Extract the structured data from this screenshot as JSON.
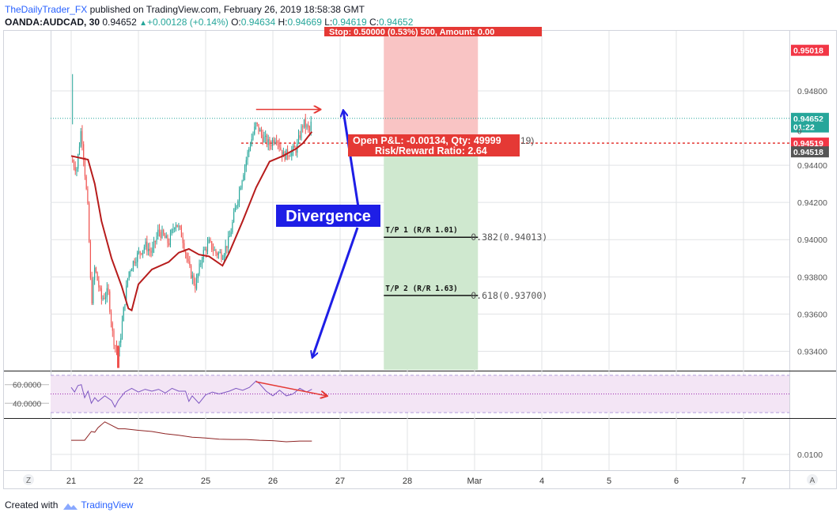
{
  "header": {
    "line1_author": "TheDailyTrader_FX",
    "line1_rest": " published on TradingView.com, February 26, 2019 18:58:38 GMT",
    "symbol": "OANDA:AUDCAD, 30",
    "last": "0.94652",
    "change": "+0.00128 (+0.14%)",
    "o_label": "O:",
    "o_val": "0.94634",
    "h_label": "H:",
    "h_val": "0.94669",
    "l_label": "L:",
    "l_val": "0.94619",
    "c_label": "C:",
    "c_val": "0.94652"
  },
  "footer": {
    "created": "Created with",
    "brand": "TradingView"
  },
  "chart_data": {
    "type": "candlestick",
    "symbol": "OANDA:AUDCAD",
    "interval": "30",
    "price_axis": {
      "range": [
        0.933,
        0.9511
      ],
      "ticks": [
        "0.94800",
        "0.94400",
        "0.94200",
        "0.94000",
        "0.93800",
        "0.93600",
        "0.93400"
      ],
      "ticks_y": [
        0.948,
        0.944,
        0.942,
        0.94,
        0.938,
        0.936,
        0.934
      ],
      "labels": [
        {
          "text": "0.95018",
          "value": 0.95018,
          "color": "#f23645"
        },
        {
          "text": "0.94652",
          "value": 0.94652,
          "color": "#26a69a"
        },
        {
          "text": "01:22",
          "value": 0.94606,
          "color": "#26a69a"
        },
        {
          "text": "0.94519",
          "value": 0.94519,
          "color": "#f23645"
        },
        {
          "text": "0.94518",
          "value": 0.94472,
          "color": "#555555"
        }
      ],
      "small_text": "0"
    },
    "time_axis": {
      "labels": [
        "21",
        "22",
        "25",
        "26",
        "27",
        "28",
        "Mar",
        "4",
        "5",
        "6",
        "7"
      ],
      "index": [
        0,
        1,
        2,
        3,
        4,
        5,
        6,
        7,
        8,
        9,
        10
      ],
      "z_label": "Z",
      "a_label": "A"
    },
    "last_price": 0.94652,
    "close_path": [
      [
        0.0,
        0.9443
      ],
      [
        0.08,
        0.9438
      ],
      [
        0.15,
        0.946
      ],
      [
        0.2,
        0.9438
      ],
      [
        0.25,
        0.9415
      ],
      [
        0.3,
        0.9365
      ],
      [
        0.35,
        0.9385
      ],
      [
        0.45,
        0.9368
      ],
      [
        0.55,
        0.9372
      ],
      [
        0.62,
        0.9348
      ],
      [
        0.7,
        0.9337
      ],
      [
        0.78,
        0.9362
      ],
      [
        0.85,
        0.9382
      ],
      [
        0.95,
        0.939
      ],
      [
        1.1,
        0.9397
      ],
      [
        1.2,
        0.9393
      ],
      [
        1.3,
        0.9405
      ],
      [
        1.45,
        0.9398
      ],
      [
        1.55,
        0.941
      ],
      [
        1.65,
        0.9402
      ],
      [
        1.75,
        0.9385
      ],
      [
        1.85,
        0.9375
      ],
      [
        1.95,
        0.9392
      ],
      [
        2.05,
        0.9398
      ],
      [
        2.15,
        0.9393
      ],
      [
        2.25,
        0.9392
      ],
      [
        2.35,
        0.94
      ],
      [
        2.45,
        0.9418
      ],
      [
        2.55,
        0.9435
      ],
      [
        2.65,
        0.945
      ],
      [
        2.75,
        0.9462
      ],
      [
        2.85,
        0.9455
      ],
      [
        2.95,
        0.9451
      ],
      [
        3.05,
        0.9456
      ],
      [
        3.15,
        0.9445
      ],
      [
        3.25,
        0.9447
      ],
      [
        3.35,
        0.9449
      ],
      [
        3.45,
        0.9463
      ],
      [
        3.55,
        0.9458
      ],
      [
        3.58,
        0.94652
      ]
    ],
    "ma_path": [
      [
        0.0,
        0.9445
      ],
      [
        0.25,
        0.9443
      ],
      [
        0.35,
        0.943
      ],
      [
        0.45,
        0.941
      ],
      [
        0.6,
        0.939
      ],
      [
        0.75,
        0.9375
      ],
      [
        0.85,
        0.9363
      ],
      [
        0.9,
        0.9362
      ],
      [
        1.0,
        0.9376
      ],
      [
        1.2,
        0.9384
      ],
      [
        1.45,
        0.9388
      ],
      [
        1.6,
        0.9393
      ],
      [
        1.75,
        0.9395
      ],
      [
        1.9,
        0.9392
      ],
      [
        2.05,
        0.9391
      ],
      [
        2.25,
        0.9386
      ],
      [
        2.35,
        0.9393
      ],
      [
        2.55,
        0.941
      ],
      [
        2.75,
        0.9428
      ],
      [
        2.95,
        0.9442
      ],
      [
        3.15,
        0.9445
      ],
      [
        3.35,
        0.9449
      ],
      [
        3.45,
        0.9452
      ],
      [
        3.58,
        0.9458
      ]
    ],
    "position": {
      "type": "short",
      "entry": 0.94519,
      "stop": 0.95018,
      "x_start": 4.65,
      "x_end": 6.05,
      "stop_label": "Stop: 0.50000 (0.53%) 500, Amount: 0.00",
      "open_pl": "Open P&L: -0.00134, Qty: 49999",
      "open_pl_suffix": "19)",
      "risk_reward": "Risk/Reward Ratio: 2.64",
      "tp1_label": "T/P 1 (R/R 1.01)",
      "tp1_value": 0.94013,
      "tp1_text": "0.382(0.94013)",
      "tp2_label": "T/P 2 (R/R 1.63)",
      "tp2_value": 0.937,
      "tp2_text": "0.618(0.93700)"
    },
    "horizontal_line_price": 0.94652,
    "annotation": {
      "text": "Divergence",
      "price_top_start": 0.947,
      "price_top_end": 0.947,
      "top_x_start": 2.75,
      "top_x_end": 3.7
    },
    "rsi": {
      "ticks": [
        "60.0000",
        "40.0000"
      ],
      "ticks_y": [
        60,
        40
      ],
      "overbought": 70,
      "oversold": 30,
      "middle": 50,
      "range": [
        25,
        75
      ],
      "path": [
        [
          0.0,
          57
        ],
        [
          0.05,
          52
        ],
        [
          0.1,
          59
        ],
        [
          0.15,
          60
        ],
        [
          0.2,
          46
        ],
        [
          0.25,
          53
        ],
        [
          0.3,
          40
        ],
        [
          0.35,
          46
        ],
        [
          0.4,
          42
        ],
        [
          0.5,
          48
        ],
        [
          0.6,
          43
        ],
        [
          0.65,
          36
        ],
        [
          0.7,
          43
        ],
        [
          0.8,
          52
        ],
        [
          0.9,
          56
        ],
        [
          1.0,
          52
        ],
        [
          1.1,
          55
        ],
        [
          1.2,
          53
        ],
        [
          1.3,
          55
        ],
        [
          1.4,
          51
        ],
        [
          1.5,
          56
        ],
        [
          1.6,
          53
        ],
        [
          1.7,
          53
        ],
        [
          1.75,
          42
        ],
        [
          1.8,
          48
        ],
        [
          1.9,
          40
        ],
        [
          2.0,
          49
        ],
        [
          2.1,
          52
        ],
        [
          2.2,
          50
        ],
        [
          2.35,
          53
        ],
        [
          2.45,
          56
        ],
        [
          2.55,
          54
        ],
        [
          2.65,
          57
        ],
        [
          2.75,
          64
        ],
        [
          2.8,
          61
        ],
        [
          2.9,
          53
        ],
        [
          3.0,
          48
        ],
        [
          3.1,
          54
        ],
        [
          3.2,
          48
        ],
        [
          3.3,
          50
        ],
        [
          3.4,
          56
        ],
        [
          3.5,
          52
        ],
        [
          3.58,
          55
        ]
      ],
      "divergence_start": [
        2.75,
        63
      ],
      "divergence_end": [
        3.8,
        48
      ]
    },
    "indicator2": {
      "ticks": [
        "0.0100"
      ],
      "ticks_y": [
        0.01
      ],
      "range": [
        0.0065,
        0.0195
      ],
      "path": [
        [
          0.0,
          0.0137
        ],
        [
          0.2,
          0.0137
        ],
        [
          0.3,
          0.016
        ],
        [
          0.35,
          0.0158
        ],
        [
          0.4,
          0.017
        ],
        [
          0.5,
          0.0185
        ],
        [
          0.6,
          0.0176
        ],
        [
          0.7,
          0.0167
        ],
        [
          0.8,
          0.0167
        ],
        [
          1.0,
          0.0163
        ],
        [
          1.2,
          0.016
        ],
        [
          1.4,
          0.0154
        ],
        [
          1.6,
          0.015
        ],
        [
          1.8,
          0.0145
        ],
        [
          2.0,
          0.0143
        ],
        [
          2.2,
          0.014
        ],
        [
          2.4,
          0.0139
        ],
        [
          2.6,
          0.0139
        ],
        [
          2.8,
          0.0137
        ],
        [
          3.0,
          0.0136
        ],
        [
          3.2,
          0.0133
        ],
        [
          3.4,
          0.0135
        ],
        [
          3.58,
          0.0135
        ]
      ]
    },
    "colors": {
      "up": "#26a69a",
      "down": "#ef5350",
      "ma": "#b71c1c",
      "rsi_line": "#7e57c2",
      "rsi_band": "#f3e5f5",
      "ind2": "#8e2323",
      "blue": "#1e1ee6",
      "red": "#e53935",
      "grid": "#e1e3e6",
      "loss_zone": "#f9c4c4",
      "profit_zone": "#cfe8cf"
    }
  }
}
